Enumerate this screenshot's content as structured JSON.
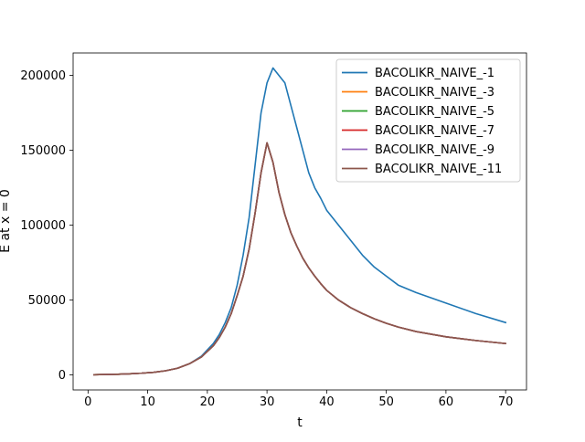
{
  "chart_data": {
    "type": "line",
    "title": "",
    "xlabel": "t",
    "ylabel": "E at x = 0",
    "xlim": [
      -2.5,
      73.5
    ],
    "ylim": [
      -10000,
      215000
    ],
    "xticks": [
      0,
      10,
      20,
      30,
      40,
      50,
      60,
      70
    ],
    "yticks": [
      0,
      50000,
      100000,
      150000,
      200000
    ],
    "grid": false,
    "legend_position": "top-right",
    "x": [
      1,
      3,
      5,
      7,
      9,
      11,
      13,
      15,
      17,
      19,
      21,
      22,
      23,
      24,
      25,
      26,
      27,
      28,
      29,
      30,
      31,
      32,
      33,
      34,
      35,
      36,
      37,
      38,
      39,
      40,
      42,
      44,
      46,
      48,
      50,
      52,
      55,
      60,
      65,
      70
    ],
    "series": [
      {
        "name": "BACOLIKR_NAIVE_-1",
        "color": "#1f77b4",
        "values": [
          200,
          300,
          500,
          800,
          1200,
          1800,
          2800,
          4500,
          7500,
          12500,
          21000,
          27000,
          35000,
          45000,
          60000,
          80000,
          105000,
          140000,
          175000,
          195000,
          205000,
          200000,
          195000,
          180000,
          165000,
          150000,
          135000,
          125000,
          118000,
          110000,
          100000,
          90000,
          80000,
          72000,
          66000,
          60000,
          55000,
          48000,
          41000,
          35000
        ]
      },
      {
        "name": "BACOLIKR_NAIVE_-3",
        "color": "#ff7f0e",
        "values": [
          200,
          300,
          500,
          800,
          1200,
          1800,
          2800,
          4500,
          7500,
          12000,
          19500,
          25000,
          32000,
          41000,
          53000,
          66000,
          84000,
          108000,
          135000,
          155000,
          142000,
          122000,
          107000,
          95000,
          86000,
          78000,
          71500,
          66000,
          61000,
          56500,
          50000,
          45000,
          41000,
          37500,
          34500,
          32000,
          29000,
          25500,
          23000,
          21000
        ]
      },
      {
        "name": "BACOLIKR_NAIVE_-5",
        "color": "#2ca02c",
        "values": [
          200,
          300,
          500,
          800,
          1200,
          1800,
          2800,
          4500,
          7500,
          12000,
          19500,
          25000,
          32000,
          41000,
          53000,
          66000,
          84000,
          108000,
          135000,
          155000,
          142000,
          122000,
          107000,
          95000,
          86000,
          78000,
          71500,
          66000,
          61000,
          56500,
          50000,
          45000,
          41000,
          37500,
          34500,
          32000,
          29000,
          25500,
          23000,
          21000
        ]
      },
      {
        "name": "BACOLIKR_NAIVE_-7",
        "color": "#d62728",
        "values": [
          200,
          300,
          500,
          800,
          1200,
          1800,
          2800,
          4500,
          7500,
          12000,
          19500,
          25000,
          32000,
          41000,
          53000,
          66000,
          84000,
          108000,
          135000,
          155000,
          142000,
          122000,
          107000,
          95000,
          86000,
          78000,
          71500,
          66000,
          61000,
          56500,
          50000,
          45000,
          41000,
          37500,
          34500,
          32000,
          29000,
          25500,
          23000,
          21000
        ]
      },
      {
        "name": "BACOLIKR_NAIVE_-9",
        "color": "#9467bd",
        "values": [
          200,
          300,
          500,
          800,
          1200,
          1800,
          2800,
          4500,
          7500,
          12000,
          19500,
          25000,
          32000,
          41000,
          53000,
          66000,
          84000,
          108000,
          135000,
          155000,
          142000,
          122000,
          107000,
          95000,
          86000,
          78000,
          71500,
          66000,
          61000,
          56500,
          50000,
          45000,
          41000,
          37500,
          34500,
          32000,
          29000,
          25500,
          23000,
          21000
        ]
      },
      {
        "name": "BACOLIKR_NAIVE_-11",
        "color": "#8c564b",
        "values": [
          200,
          300,
          500,
          800,
          1200,
          1800,
          2800,
          4500,
          7500,
          12000,
          19500,
          25000,
          32000,
          41000,
          53000,
          66000,
          84000,
          108000,
          135000,
          155000,
          142000,
          122000,
          107000,
          95000,
          86000,
          78000,
          71500,
          66000,
          61000,
          56500,
          50000,
          45000,
          41000,
          37500,
          34500,
          32000,
          29000,
          25500,
          23000,
          21000
        ]
      }
    ]
  }
}
